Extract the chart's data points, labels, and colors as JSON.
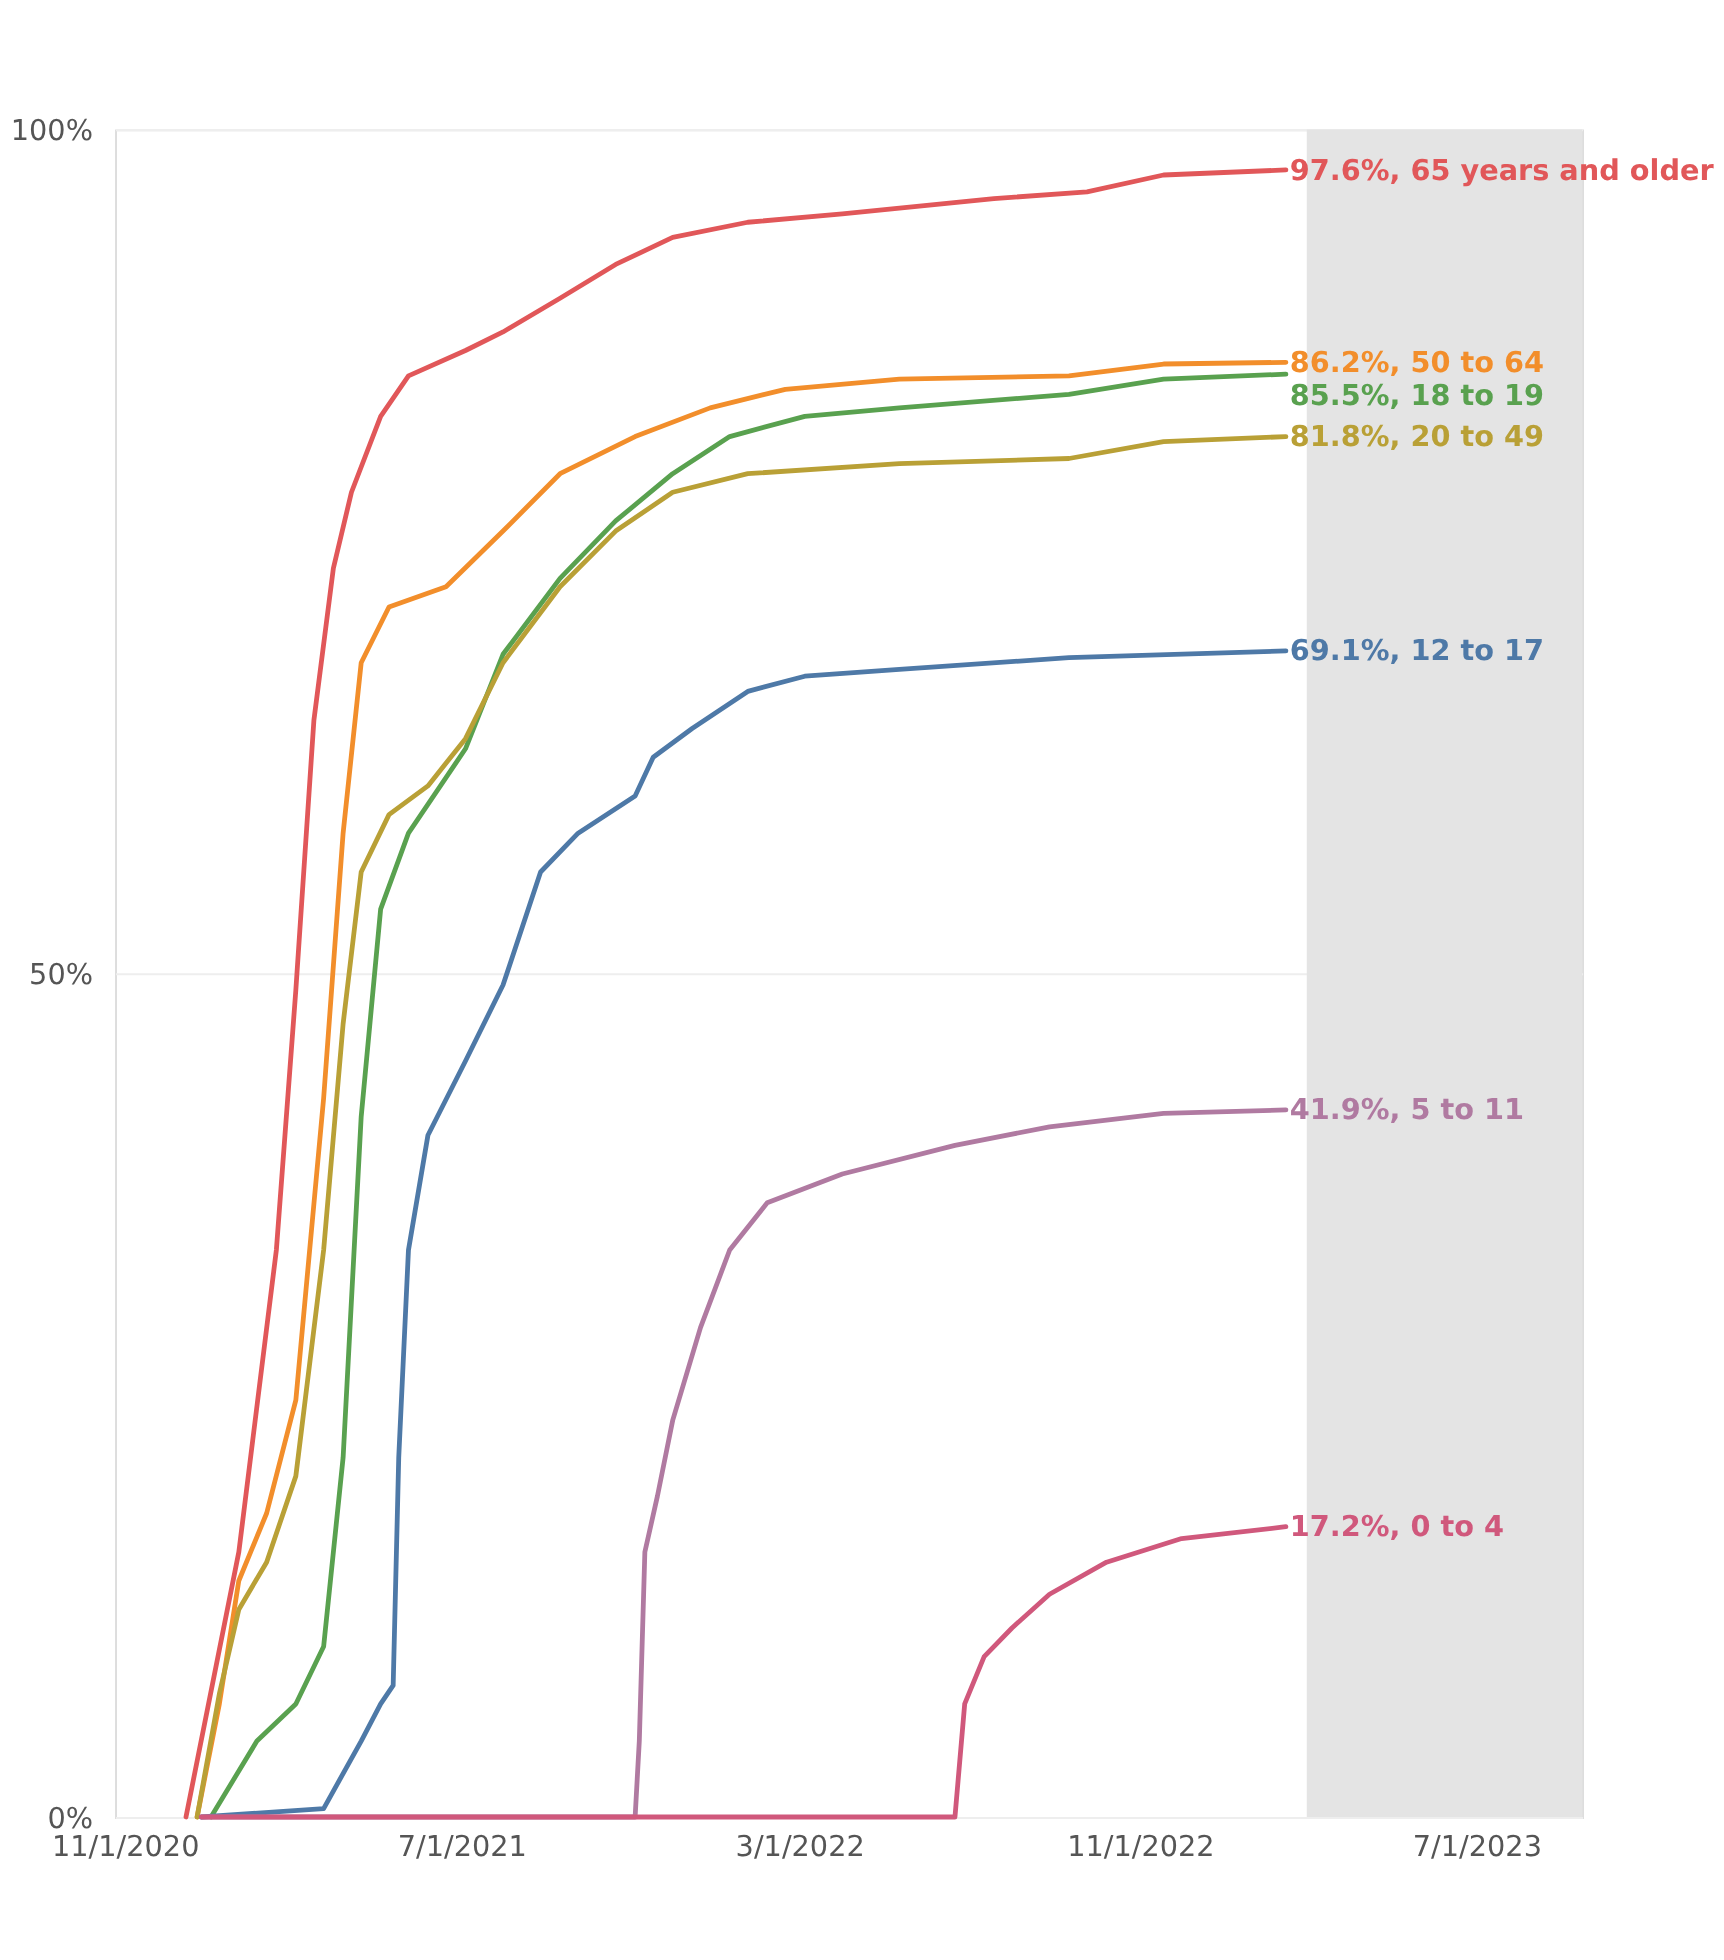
{
  "chart_data": {
    "type": "line",
    "legend": false,
    "grid": "y",
    "marker": "none",
    "line_style": "solid",
    "xlim": [
      "2020-10-25",
      "2023-09-15"
    ],
    "xticks": [
      {
        "value": "2020-11-01",
        "label": "11/1/2020"
      },
      {
        "value": "2021-07-01",
        "label": "7/1/2021"
      },
      {
        "value": "2022-03-01",
        "label": "3/1/2022"
      },
      {
        "value": "2022-11-01",
        "label": "11/1/2022"
      },
      {
        "value": "2023-07-01",
        "label": "7/1/2023"
      }
    ],
    "ylim": [
      0,
      100
    ],
    "yticks": [
      {
        "value": 0,
        "label": "0%"
      },
      {
        "value": 50,
        "label": "50%"
      },
      {
        "value": 100,
        "label": "100%"
      }
    ],
    "bands": [
      {
        "axis": "x",
        "from": "2023-03-01",
        "to": "2023-09-15",
        "color": "#e4e4e4"
      }
    ],
    "series": [
      {
        "color": "#e15759",
        "x": [
          "2020-12-15",
          "2021-01-22",
          "2021-02-18",
          "2021-03-04",
          "2021-03-17",
          "2021-03-31",
          "2021-04-13",
          "2021-05-04",
          "2021-05-24",
          "2021-07-04",
          "2021-07-31",
          "2021-09-10",
          "2021-10-20",
          "2021-11-30",
          "2022-01-23",
          "2022-04-01",
          "2022-07-19",
          "2022-09-24",
          "2022-11-18",
          "2023-02-14"
        ],
        "values": [
          0,
          15.7,
          33.6,
          49,
          65,
          74,
          78.5,
          83,
          85.4,
          86.9,
          88,
          90,
          92,
          93.6,
          94.5,
          95,
          95.9,
          96.3,
          97.3,
          97.6
        ],
        "value_labels": [
          null,
          null,
          null,
          null,
          null,
          null,
          null,
          null,
          null,
          null,
          null,
          null,
          null,
          null,
          null,
          null,
          null,
          null,
          null,
          "97.6%, 65 years and older"
        ]
      },
      {
        "color": "#f28e2b",
        "x": [
          "2020-12-23",
          "2021-01-08",
          "2021-01-22",
          "2021-02-11",
          "2021-03-04",
          "2021-03-24",
          "2021-04-07",
          "2021-04-20",
          "2021-05-10",
          "2021-06-20",
          "2021-07-31",
          "2021-09-10",
          "2021-11-03",
          "2021-12-27",
          "2022-02-19",
          "2022-05-12",
          "2022-09-11",
          "2022-11-18",
          "2023-02-14"
        ],
        "values": [
          0,
          6.7,
          14,
          18,
          24.7,
          42.6,
          58.3,
          68.4,
          71.7,
          72.9,
          76.2,
          79.6,
          81.8,
          83.5,
          84.6,
          85.2,
          85.4,
          86.1,
          86.2
        ],
        "value_labels": [
          null,
          null,
          null,
          null,
          null,
          null,
          null,
          null,
          null,
          null,
          null,
          null,
          null,
          null,
          null,
          null,
          null,
          null,
          "86.2%, 50 to 64"
        ]
      },
      {
        "color": "#59a14f",
        "x": [
          "2021-01-02",
          "2021-02-04",
          "2021-03-04",
          "2021-03-24",
          "2021-04-07",
          "2021-04-20",
          "2021-05-04",
          "2021-05-24",
          "2021-07-04",
          "2021-07-31",
          "2021-09-10",
          "2021-10-20",
          "2021-11-30",
          "2022-01-10",
          "2022-03-05",
          "2022-05-12",
          "2022-09-11",
          "2022-11-18",
          "2023-02-14"
        ],
        "values": [
          0,
          4.5,
          6.7,
          10.1,
          21.3,
          41.5,
          53.8,
          58.3,
          63.3,
          68.9,
          73.4,
          76.8,
          79.6,
          81.8,
          83,
          83.5,
          84.3,
          85.2,
          85.5
        ],
        "value_labels": [
          null,
          null,
          null,
          null,
          null,
          null,
          null,
          null,
          null,
          null,
          null,
          null,
          null,
          null,
          null,
          null,
          null,
          null,
          "85.5%, 18 to 19"
        ]
      },
      {
        "color": "#b9a036",
        "x": [
          "2020-12-23",
          "2021-01-08",
          "2021-01-22",
          "2021-02-11",
          "2021-03-04",
          "2021-03-24",
          "2021-04-07",
          "2021-04-20",
          "2021-05-10",
          "2021-06-07",
          "2021-07-04",
          "2021-07-31",
          "2021-09-10",
          "2021-10-20",
          "2021-11-30",
          "2022-01-23",
          "2022-05-12",
          "2022-09-11",
          "2022-11-18",
          "2023-02-14"
        ],
        "values": [
          0,
          7.3,
          12.3,
          15.1,
          20.2,
          33.6,
          47,
          56,
          59.4,
          61.1,
          63.9,
          68.4,
          72.9,
          76.2,
          78.5,
          79.6,
          80.2,
          80.5,
          81.5,
          81.8
        ],
        "value_labels": [
          null,
          null,
          null,
          null,
          null,
          null,
          null,
          null,
          null,
          null,
          null,
          null,
          null,
          null,
          null,
          null,
          null,
          null,
          null,
          "81.8%, 20 to 49"
        ]
      },
      {
        "color": "#4e79a7",
        "x": [
          "2020-12-26",
          "2021-03-24",
          "2021-04-20",
          "2021-05-04",
          "2021-05-13",
          "2021-05-17",
          "2021-05-24",
          "2021-06-07",
          "2021-07-04",
          "2021-07-31",
          "2021-08-27",
          "2021-09-23",
          "2021-11-03",
          "2021-11-16",
          "2021-12-14",
          "2022-01-23",
          "2022-03-05",
          "2022-05-12",
          "2022-09-11",
          "2023-02-14"
        ],
        "values": [
          0,
          0.5,
          4.5,
          6.7,
          7.8,
          21.3,
          33.6,
          40.4,
          44.8,
          49.3,
          56,
          58.3,
          60.5,
          62.8,
          64.5,
          66.7,
          67.6,
          68,
          68.7,
          69.1
        ],
        "value_labels": [
          null,
          null,
          null,
          null,
          null,
          null,
          null,
          null,
          null,
          null,
          null,
          null,
          null,
          null,
          null,
          null,
          null,
          null,
          null,
          "69.1%, 12 to 17"
        ]
      },
      {
        "color": "#b07aa1",
        "x": [
          "2020-12-26",
          "2021-11-03",
          "2021-11-06",
          "2021-11-10",
          "2021-11-19",
          "2021-11-30",
          "2021-12-20",
          "2022-01-10",
          "2022-02-06",
          "2022-04-01",
          "2022-06-21",
          "2022-08-28",
          "2022-11-18",
          "2023-02-14"
        ],
        "values": [
          0,
          0,
          4.5,
          15.7,
          19,
          23.5,
          29,
          33.6,
          36.4,
          38.1,
          39.8,
          40.9,
          41.7,
          41.9
        ],
        "value_labels": [
          null,
          null,
          null,
          null,
          null,
          null,
          null,
          null,
          null,
          null,
          null,
          null,
          null,
          "41.9%, 5 to 11"
        ]
      },
      {
        "color": "#d0587c",
        "x": [
          "2020-12-26",
          "2022-06-21",
          "2022-06-28",
          "2022-07-12",
          "2022-08-01",
          "2022-08-28",
          "2022-10-08",
          "2022-12-01",
          "2023-02-14"
        ],
        "values": [
          0,
          0,
          6.7,
          9.5,
          11.2,
          13.2,
          15.1,
          16.5,
          17.2
        ],
        "value_labels": [
          null,
          null,
          null,
          null,
          null,
          null,
          null,
          null,
          "17.2%, 0 to 4"
        ]
      }
    ]
  }
}
